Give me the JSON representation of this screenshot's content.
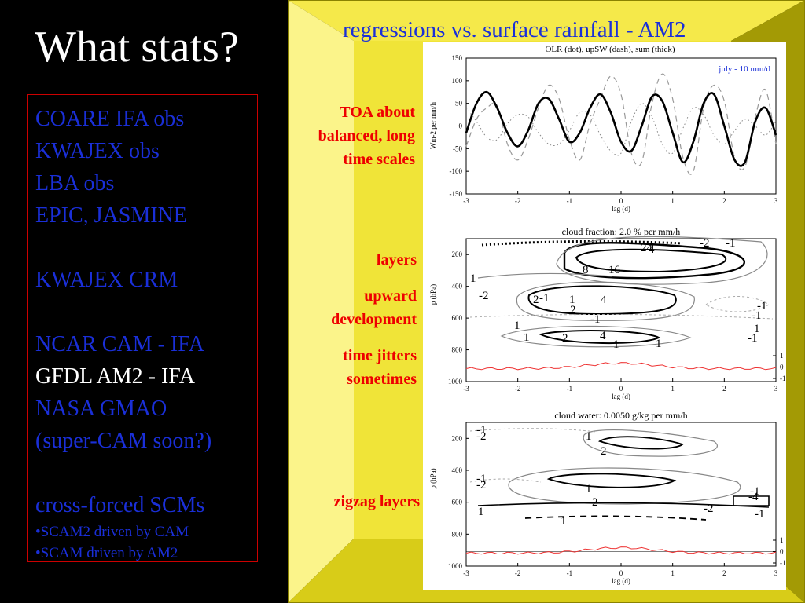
{
  "left": {
    "title": "What stats?",
    "items": [
      {
        "text": "COARE  IFA obs",
        "style": "blue"
      },
      {
        "text": "KWAJEX obs",
        "style": "blue"
      },
      {
        "text": "LBA obs",
        "style": "blue"
      },
      {
        "text": "EPIC, JASMINE",
        "style": "blue"
      },
      {
        "text": "",
        "style": "gap"
      },
      {
        "text": "KWAJEX CRM",
        "style": "blue"
      },
      {
        "text": "",
        "style": "gap"
      },
      {
        "text": "NCAR CAM - IFA",
        "style": "blue"
      },
      {
        "text": "GFDL AM2 - IFA",
        "style": "white"
      },
      {
        "text": "NASA GMAO",
        "style": "blue"
      },
      {
        "text": "(super-CAM soon?)",
        "style": "blue"
      },
      {
        "text": "",
        "style": "gap"
      },
      {
        "text": "cross-forced SCMs",
        "style": "blue"
      },
      {
        "text": "•SCAM2 driven by CAM",
        "style": "small"
      },
      {
        "text": "•SCAM driven by AM2",
        "style": "small"
      }
    ]
  },
  "right": {
    "title": "regressions vs. surface rainfall - AM2",
    "notes": {
      "toa": [
        "TOA about",
        "balanced, long",
        "time scales"
      ],
      "layers": "layers",
      "upward": [
        "upward",
        "development"
      ],
      "jitters": [
        "time jitters",
        "sometimes"
      ],
      "zigzag": "zigzag layers"
    },
    "colors": {
      "frame_yellow": "#f5e94a",
      "frame_light": "#fbf48a",
      "frame_dark": "#a39a05",
      "accent_red": "#ee0000",
      "title_blue": "#1a2fd8"
    }
  },
  "chart_data": [
    {
      "type": "line",
      "title": "OLR (dot), upSW (dash), sum (thick)",
      "annotation": "july - 10 mm/d",
      "xlabel": "lag (d)",
      "ylabel": "Wm-2 per mm/h",
      "xlim": [
        -3,
        3
      ],
      "ylim": [
        -150,
        150
      ],
      "xticks": [
        "-3",
        "-2",
        "-1",
        "0",
        "1",
        "2",
        "3"
      ],
      "yticks": [
        "150",
        "100",
        "50",
        "0",
        "-50",
        "-100",
        "-150"
      ],
      "x": [
        -3.0,
        -2.8,
        -2.6,
        -2.4,
        -2.2,
        -2.0,
        -1.8,
        -1.6,
        -1.4,
        -1.2,
        -1.0,
        -0.8,
        -0.6,
        -0.4,
        -0.2,
        0.0,
        0.2,
        0.4,
        0.6,
        0.8,
        1.0,
        1.2,
        1.4,
        1.6,
        1.8,
        2.0,
        2.2,
        2.4,
        2.6,
        2.8,
        3.0
      ],
      "series": [
        {
          "values": [
            -15,
            50,
            75,
            40,
            -15,
            -45,
            -10,
            50,
            60,
            15,
            -35,
            -15,
            40,
            70,
            30,
            -35,
            -55,
            0,
            65,
            55,
            -15,
            -80,
            -35,
            50,
            70,
            0,
            -75,
            -80,
            10,
            40,
            -20
          ]
        },
        {
          "values": [
            -45,
            15,
            40,
            45,
            -40,
            -75,
            -30,
            40,
            90,
            60,
            -30,
            -75,
            5,
            60,
            110,
            70,
            -60,
            -80,
            50,
            115,
            60,
            -70,
            -100,
            40,
            90,
            55,
            -70,
            -90,
            20,
            80,
            -40
          ]
        },
        {
          "values": [
            40,
            10,
            -25,
            -30,
            5,
            25,
            20,
            -15,
            -40,
            -40,
            -10,
            30,
            25,
            -20,
            -55,
            -60,
            10,
            50,
            20,
            -40,
            -60,
            -5,
            40,
            25,
            -20,
            -40,
            -10,
            15,
            0,
            -20,
            10
          ]
        }
      ]
    },
    {
      "type": "heatmap",
      "title": "cloud fraction: 2.0 % per mm/h",
      "xlabel": "lag (d)",
      "ylabel": "p (hPa)",
      "xlim": [
        -3,
        3
      ],
      "ylim": [
        1000,
        100
      ],
      "xticks": [
        "-3",
        "-2",
        "-1",
        "0",
        "1",
        "2",
        "3"
      ],
      "yticks": [
        "200",
        "400",
        "600",
        "800",
        "1000"
      ],
      "right_ticks": [
        "1",
        "0",
        "-1"
      ],
      "contour_labels": [
        "4",
        "8",
        "16",
        "24",
        "-2",
        "-1",
        "1",
        "2",
        "-2",
        "-1",
        "1",
        "2",
        "4",
        "-1",
        "1",
        "1",
        "2",
        "4",
        "1",
        "1",
        "-1",
        "-1",
        "1",
        "-1"
      ]
    },
    {
      "type": "heatmap",
      "title": "cloud water: 0.0050 g/kg per mm/h",
      "xlabel": "lag (d)",
      "ylabel": "p (hPa)",
      "xlim": [
        -3,
        3
      ],
      "ylim": [
        1000,
        100
      ],
      "xticks": [
        "-3",
        "-2",
        "-1",
        "0",
        "1",
        "2",
        "3"
      ],
      "yticks": [
        "200",
        "400",
        "600",
        "800",
        "1000"
      ],
      "right_ticks": [
        "1",
        "0",
        "-1"
      ],
      "contour_labels": [
        "-1",
        "-2",
        "1",
        "2",
        "-1",
        "-2",
        "1",
        "2",
        "1",
        "1",
        "-2",
        "-1",
        "-1",
        "-4"
      ]
    }
  ]
}
